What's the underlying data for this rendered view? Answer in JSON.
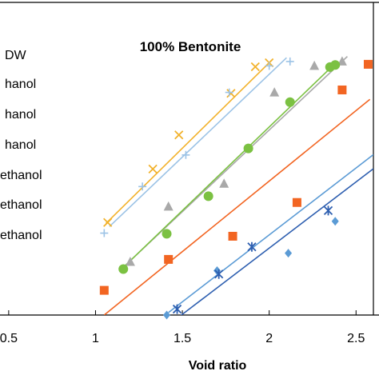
{
  "chart_data": {
    "type": "scatter",
    "title": "100% Bentonite",
    "xlabel": "Void ratio",
    "ylabel": "",
    "xlim": [
      0.45,
      2.6
    ],
    "ylim": [
      0,
      1
    ],
    "x_ticks": [
      "0.5",
      "1",
      "1.5",
      "2",
      "2.5"
    ],
    "grid": false,
    "legend_position": "left (cropped)",
    "legend_labels": [
      "DW",
      "hanol",
      "hanol",
      "hanol",
      "ethanol",
      "ethanol",
      "ethanol"
    ],
    "series": [
      {
        "color": "#f2b22c",
        "marker": "x",
        "points": [
          [
            1.07,
            0.296
          ],
          [
            1.33,
            0.467
          ],
          [
            1.48,
            0.576
          ],
          [
            1.78,
            0.709
          ],
          [
            1.92,
            0.794
          ],
          [
            2.0,
            0.807
          ]
        ],
        "fit": [
          [
            1.06,
            0.293
          ],
          [
            2.02,
            0.818
          ]
        ]
      },
      {
        "color": "#9cc3e6",
        "marker": "+",
        "points": [
          [
            1.05,
            0.262
          ],
          [
            1.27,
            0.411
          ],
          [
            1.52,
            0.512
          ],
          [
            1.77,
            0.712
          ],
          [
            2.0,
            0.797
          ],
          [
            2.12,
            0.811
          ]
        ],
        "fit": [
          [
            1.08,
            0.283
          ],
          [
            2.1,
            0.823
          ]
        ]
      },
      {
        "color": "#a9a9a9",
        "marker": "triangle",
        "points": [
          [
            1.2,
            0.17
          ],
          [
            1.42,
            0.347
          ],
          [
            1.74,
            0.42
          ],
          [
            2.03,
            0.712
          ],
          [
            2.26,
            0.797
          ],
          [
            2.42,
            0.811
          ]
        ],
        "fit": [
          [
            1.17,
            0.158
          ],
          [
            2.45,
            0.827
          ]
        ]
      },
      {
        "color": "#7bc142",
        "marker": "circle",
        "points": [
          [
            1.16,
            0.147
          ],
          [
            1.41,
            0.26
          ],
          [
            1.65,
            0.38
          ],
          [
            1.88,
            0.533
          ],
          [
            2.12,
            0.681
          ],
          [
            2.35,
            0.793
          ],
          [
            2.38,
            0.8
          ]
        ],
        "fit": [
          [
            1.15,
            0.147
          ],
          [
            2.39,
            0.81
          ]
        ]
      },
      {
        "color": "#f26522",
        "marker": "square",
        "points": [
          [
            1.05,
            0.079
          ],
          [
            1.42,
            0.178
          ],
          [
            1.79,
            0.252
          ],
          [
            2.16,
            0.36
          ],
          [
            2.42,
            0.72
          ],
          [
            2.57,
            0.802
          ]
        ],
        "fit": [
          [
            1.05,
            0.0
          ],
          [
            2.58,
            0.69
          ]
        ]
      },
      {
        "color": "#5b9bd5",
        "marker": "diamond",
        "points": [
          [
            1.41,
            0.0
          ],
          [
            1.7,
            0.142
          ],
          [
            2.11,
            0.198
          ],
          [
            2.38,
            0.3
          ]
        ],
        "fit": [
          [
            1.42,
            0.008
          ],
          [
            2.6,
            0.513
          ]
        ]
      },
      {
        "color": "#2e5fb0",
        "marker": "asterisk",
        "points": [
          [
            1.47,
            0.019
          ],
          [
            1.71,
            0.131
          ],
          [
            1.9,
            0.218
          ],
          [
            2.34,
            0.334
          ]
        ],
        "fit": [
          [
            1.4,
            -0.04
          ],
          [
            2.6,
            0.468
          ]
        ]
      }
    ]
  }
}
